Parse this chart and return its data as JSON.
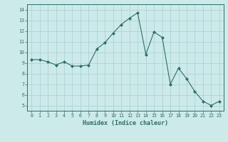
{
  "xlabel": "Humidex (Indice chaleur)",
  "x": [
    0,
    1,
    2,
    3,
    4,
    5,
    6,
    7,
    8,
    9,
    10,
    11,
    12,
    13,
    14,
    15,
    16,
    17,
    18,
    19,
    20,
    21,
    22,
    23
  ],
  "y": [
    9.3,
    9.3,
    9.1,
    8.8,
    9.1,
    8.7,
    8.7,
    8.8,
    10.3,
    10.9,
    11.8,
    12.6,
    13.2,
    13.7,
    9.8,
    11.9,
    11.4,
    7.0,
    8.5,
    7.5,
    6.3,
    5.4,
    5.0,
    5.4
  ],
  "line_color": "#2e6e62",
  "bg_color": "#cceaea",
  "grid_color": "#aacece",
  "ylim": [
    4.5,
    14.5
  ],
  "xlim": [
    -0.5,
    23.5
  ],
  "yticks": [
    5,
    6,
    7,
    8,
    9,
    10,
    11,
    12,
    13,
    14
  ],
  "xticks": [
    0,
    1,
    2,
    3,
    4,
    5,
    6,
    7,
    8,
    9,
    10,
    11,
    12,
    13,
    14,
    15,
    16,
    17,
    18,
    19,
    20,
    21,
    22,
    23
  ]
}
